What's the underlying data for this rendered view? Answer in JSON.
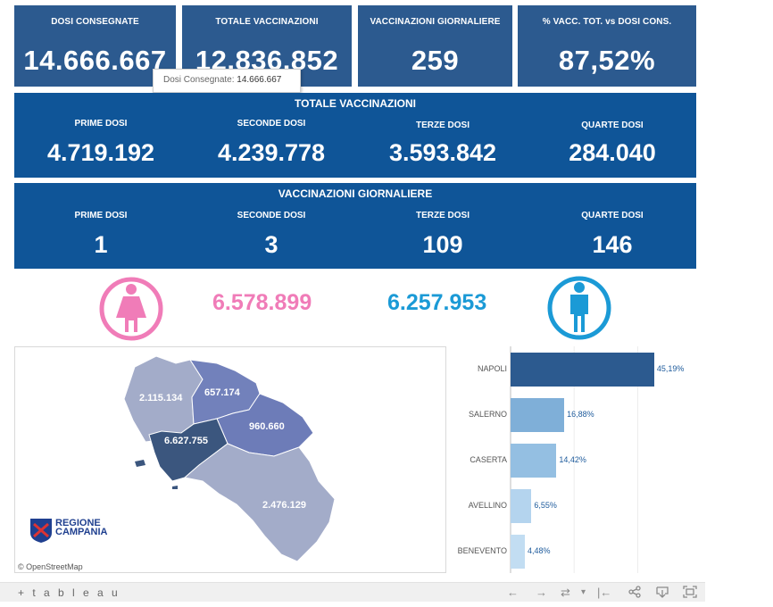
{
  "kpis": [
    {
      "label": "DOSI  CONSEGNATE",
      "value": "14.666.667"
    },
    {
      "label": "TOTALE VACCINAZIONI",
      "value": "12.836.852"
    },
    {
      "label": "VACCINAZIONI GIORNALIERE",
      "value": "259"
    },
    {
      "label": "% VACC. TOT. vs DOSI CONS.",
      "value": "87,52%"
    }
  ],
  "tooltip": {
    "label": "Dosi Consegnate:",
    "value": "14.666.667"
  },
  "totale": {
    "title": "TOTALE VACCINAZIONI",
    "items": [
      {
        "label": "PRIME DOSI",
        "value": "4.719.192"
      },
      {
        "label": "SECONDE DOSI",
        "value": "4.239.778"
      },
      {
        "label": "TERZE DOSI",
        "value": "3.593.842"
      },
      {
        "label": "QUARTE DOSI",
        "value": "284.040"
      }
    ]
  },
  "giornaliere": {
    "title": "VACCINAZIONI GIORNALIERE",
    "items": [
      {
        "label": "PRIME DOSI",
        "value": "1"
      },
      {
        "label": "SECONDE DOSI",
        "value": "3"
      },
      {
        "label": "TERZE DOSI",
        "value": "109"
      },
      {
        "label": "QUARTE DOSI",
        "value": "146"
      }
    ]
  },
  "gender": {
    "female": {
      "value": "6.578.899",
      "color": "#f07cb8",
      "icon": "female-icon"
    },
    "male": {
      "value": "6.257.953",
      "color": "#1b9ad6",
      "icon": "male-icon"
    }
  },
  "map": {
    "regions": [
      {
        "name": "Caserta",
        "value": "2.115.134"
      },
      {
        "name": "Benevento",
        "value": "657.174"
      },
      {
        "name": "Avellino",
        "value": "960.660"
      },
      {
        "name": "Napoli",
        "value": "6.627.755"
      },
      {
        "name": "Salerno",
        "value": "2.476.129"
      }
    ],
    "logo_line1": "REGIONE",
    "logo_line2": "CAMPANIA",
    "attribution": "© OpenStreetMap"
  },
  "chart_data": {
    "type": "bar",
    "orientation": "horizontal",
    "categories": [
      "NAPOLI",
      "SALERNO",
      "CASERTA",
      "AVELLINO",
      "BENEVENTO"
    ],
    "values": [
      45.19,
      16.88,
      14.42,
      6.55,
      4.48
    ],
    "labels": [
      "45,19%",
      "16,88%",
      "14,42%",
      "6,55%",
      "4,48%"
    ],
    "colors": [
      "#2c5a8f",
      "#7fafd8",
      "#94bfe2",
      "#b4d4ee",
      "#c2ddf2"
    ],
    "xlim": [
      0,
      50
    ],
    "grid": true
  },
  "footer": {
    "logo": "+ t a b l e a u",
    "controls": [
      "←",
      "→",
      "⇄",
      "▾",
      "|←",
      "share",
      "download",
      "fullscreen"
    ]
  }
}
